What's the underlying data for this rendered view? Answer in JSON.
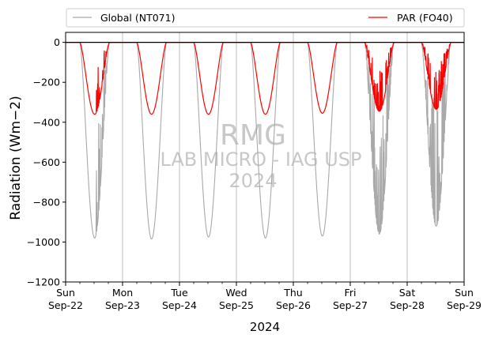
{
  "chart_data": {
    "type": "line",
    "title": "",
    "xlabel": "2024",
    "ylabel": "Radiation (Wm−2)",
    "ylim": [
      -1200,
      50
    ],
    "yticks": [
      0,
      -200,
      -400,
      -600,
      -800,
      -1000,
      -1200
    ],
    "ytick_labels": [
      "0",
      "−200",
      "−400",
      "−600",
      "−800",
      "−1000",
      "−1200"
    ],
    "xlim": [
      "2024-09-22",
      "2024-09-29"
    ],
    "x_ticks": [
      {
        "day": "Sun",
        "date": "Sep-22"
      },
      {
        "day": "Mon",
        "date": "Sep-23"
      },
      {
        "day": "Tue",
        "date": "Sep-24"
      },
      {
        "day": "Wed",
        "date": "Sep-25"
      },
      {
        "day": "Thu",
        "date": "Sep-26"
      },
      {
        "day": "Fri",
        "date": "Sep-27"
      },
      {
        "day": "Sat",
        "date": "Sep-28"
      },
      {
        "day": "Sun",
        "date": "Sep-29"
      }
    ],
    "grid": "vertical at day boundaries",
    "zero_line": true,
    "legend_position": "top, above plot",
    "series": [
      {
        "name": "Global (NT071)",
        "color": "#a9a9a9",
        "daily_minimum": [
          {
            "date": "2024-09-22",
            "min": -980
          },
          {
            "date": "2024-09-23",
            "min": -985
          },
          {
            "date": "2024-09-24",
            "min": -975
          },
          {
            "date": "2024-09-25",
            "min": -980
          },
          {
            "date": "2024-09-26",
            "min": -970
          },
          {
            "date": "2024-09-27",
            "min": -960
          },
          {
            "date": "2024-09-28",
            "min": -920
          }
        ]
      },
      {
        "name": "PAR (FO40)",
        "color": "#ff0000",
        "daily_minimum": [
          {
            "date": "2024-09-22",
            "min": -360
          },
          {
            "date": "2024-09-23",
            "min": -360
          },
          {
            "date": "2024-09-24",
            "min": -360
          },
          {
            "date": "2024-09-25",
            "min": -360
          },
          {
            "date": "2024-09-26",
            "min": -355
          },
          {
            "date": "2024-09-27",
            "min": -345
          },
          {
            "date": "2024-09-28",
            "min": -335
          }
        ]
      }
    ],
    "watermark": [
      "RMG",
      "LAB MICRO - IAG USP",
      "2024"
    ]
  }
}
